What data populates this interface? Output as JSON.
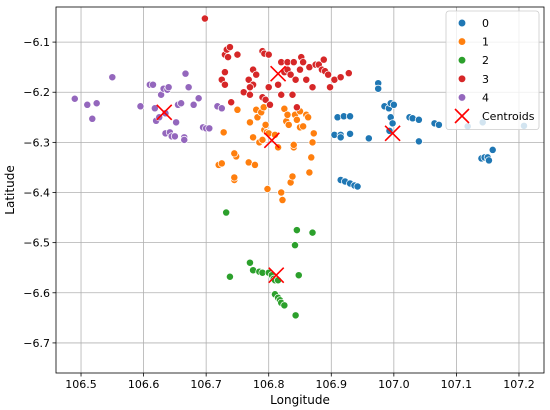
{
  "chart_data": {
    "type": "scatter",
    "title": "",
    "xlabel": "Longitude",
    "ylabel": "Latitude",
    "xlim": [
      106.46,
      107.24
    ],
    "ylim": [
      -6.76,
      -6.03
    ],
    "grid": true,
    "legend_placement": "top-right",
    "x_ticks": [
      106.5,
      106.6,
      106.7,
      106.8,
      106.9,
      107.0,
      107.1,
      107.2
    ],
    "y_ticks": [
      -6.1,
      -6.2,
      -6.3,
      -6.4,
      -6.5,
      -6.6,
      -6.7
    ],
    "x_tick_labels": [
      "106.5",
      "106.6",
      "106.7",
      "106.8",
      "106.9",
      "107.0",
      "107.1",
      "107.2"
    ],
    "y_tick_labels": [
      "−6.1",
      "−6.2",
      "−6.3",
      "−6.4",
      "−6.5",
      "−6.6",
      "−6.7"
    ],
    "series": [
      {
        "name": "0",
        "color": "#1f77b4",
        "points": [
          [
            106.905,
            -6.285
          ],
          [
            106.915,
            -6.285
          ],
          [
            106.91,
            -6.25
          ],
          [
            106.92,
            -6.248
          ],
          [
            106.93,
            -6.248
          ],
          [
            106.915,
            -6.29
          ],
          [
            106.93,
            -6.283
          ],
          [
            106.915,
            -6.375
          ],
          [
            106.922,
            -6.378
          ],
          [
            106.93,
            -6.382
          ],
          [
            106.937,
            -6.386
          ],
          [
            106.942,
            -6.388
          ],
          [
            106.975,
            -6.182
          ],
          [
            106.975,
            -6.193
          ],
          [
            106.985,
            -6.228
          ],
          [
            106.992,
            -6.232
          ],
          [
            106.995,
            -6.222
          ],
          [
            107.0,
            -6.225
          ],
          [
            106.995,
            -6.25
          ],
          [
            106.998,
            -6.262
          ],
          [
            106.993,
            -6.277
          ],
          [
            106.96,
            -6.292
          ],
          [
            107.025,
            -6.25
          ],
          [
            107.03,
            -6.252
          ],
          [
            107.04,
            -6.255
          ],
          [
            107.04,
            -6.298
          ],
          [
            107.065,
            -6.262
          ],
          [
            107.072,
            -6.265
          ],
          [
            107.118,
            -6.268
          ],
          [
            107.142,
            -6.26
          ],
          [
            107.14,
            -6.332
          ],
          [
            107.145,
            -6.33
          ],
          [
            107.15,
            -6.33
          ],
          [
            107.152,
            -6.336
          ],
          [
            107.158,
            -6.315
          ],
          [
            107.208,
            -6.267
          ]
        ]
      },
      {
        "name": "1",
        "color": "#ff7f0e",
        "points": [
          [
            106.72,
            -6.345
          ],
          [
            106.725,
            -6.342
          ],
          [
            106.728,
            -6.28
          ],
          [
            106.745,
            -6.375
          ],
          [
            106.745,
            -6.37
          ],
          [
            106.748,
            -6.328
          ],
          [
            106.745,
            -6.322
          ],
          [
            106.75,
            -6.235
          ],
          [
            106.768,
            -6.34
          ],
          [
            106.77,
            -6.26
          ],
          [
            106.775,
            -6.29
          ],
          [
            106.778,
            -6.345
          ],
          [
            106.78,
            -6.235
          ],
          [
            106.782,
            -6.25
          ],
          [
            106.788,
            -6.24
          ],
          [
            106.785,
            -6.3
          ],
          [
            106.79,
            -6.295
          ],
          [
            106.793,
            -6.275
          ],
          [
            106.795,
            -6.265
          ],
          [
            106.792,
            -6.23
          ],
          [
            106.797,
            -6.28
          ],
          [
            106.8,
            -6.282
          ],
          [
            106.798,
            -6.393
          ],
          [
            106.81,
            -6.285
          ],
          [
            106.815,
            -6.31
          ],
          [
            106.82,
            -6.4
          ],
          [
            106.822,
            -6.415
          ],
          [
            106.825,
            -6.233
          ],
          [
            106.828,
            -6.258
          ],
          [
            106.83,
            -6.245
          ],
          [
            106.832,
            -6.265
          ],
          [
            106.835,
            -6.38
          ],
          [
            106.838,
            -6.368
          ],
          [
            106.84,
            -6.31
          ],
          [
            106.84,
            -6.305
          ],
          [
            106.842,
            -6.245
          ],
          [
            106.845,
            -6.255
          ],
          [
            106.85,
            -6.238
          ],
          [
            106.85,
            -6.27
          ],
          [
            106.855,
            -6.268
          ],
          [
            106.86,
            -6.245
          ],
          [
            106.863,
            -6.25
          ],
          [
            106.865,
            -6.36
          ],
          [
            106.868,
            -6.33
          ],
          [
            106.87,
            -6.3
          ],
          [
            106.872,
            -6.282
          ]
        ]
      },
      {
        "name": "2",
        "color": "#2ca02c",
        "points": [
          [
            106.732,
            -6.44
          ],
          [
            106.738,
            -6.568
          ],
          [
            106.77,
            -6.54
          ],
          [
            106.775,
            -6.555
          ],
          [
            106.785,
            -6.558
          ],
          [
            106.79,
            -6.56
          ],
          [
            106.8,
            -6.56
          ],
          [
            106.805,
            -6.565
          ],
          [
            106.808,
            -6.572
          ],
          [
            106.81,
            -6.575
          ],
          [
            106.815,
            -6.575
          ],
          [
            106.81,
            -6.603
          ],
          [
            106.815,
            -6.61
          ],
          [
            106.818,
            -6.615
          ],
          [
            106.82,
            -6.62
          ],
          [
            106.825,
            -6.625
          ],
          [
            106.842,
            -6.505
          ],
          [
            106.845,
            -6.475
          ],
          [
            106.848,
            -6.565
          ],
          [
            106.87,
            -6.48
          ],
          [
            106.843,
            -6.645
          ]
        ]
      },
      {
        "name": "3",
        "color": "#d62728",
        "points": [
          [
            106.698,
            -6.053
          ],
          [
            106.725,
            -6.175
          ],
          [
            106.73,
            -6.125
          ],
          [
            106.733,
            -6.115
          ],
          [
            106.735,
            -6.13
          ],
          [
            106.73,
            -6.16
          ],
          [
            106.73,
            -6.185
          ],
          [
            106.738,
            -6.11
          ],
          [
            106.74,
            -6.22
          ],
          [
            106.75,
            -6.125
          ],
          [
            106.76,
            -6.2
          ],
          [
            106.768,
            -6.175
          ],
          [
            106.77,
            -6.205
          ],
          [
            106.775,
            -6.155
          ],
          [
            106.775,
            -6.185
          ],
          [
            106.78,
            -6.165
          ],
          [
            106.79,
            -6.118
          ],
          [
            106.793,
            -6.123
          ],
          [
            106.79,
            -6.21
          ],
          [
            106.795,
            -6.215
          ],
          [
            106.8,
            -6.19
          ],
          [
            106.8,
            -6.125
          ],
          [
            106.802,
            -6.225
          ],
          [
            106.815,
            -6.185
          ],
          [
            106.82,
            -6.14
          ],
          [
            106.825,
            -6.16
          ],
          [
            106.83,
            -6.155
          ],
          [
            106.83,
            -6.14
          ],
          [
            106.835,
            -6.165
          ],
          [
            106.84,
            -6.14
          ],
          [
            106.843,
            -6.175
          ],
          [
            106.845,
            -6.23
          ],
          [
            106.85,
            -6.155
          ],
          [
            106.852,
            -6.13
          ],
          [
            106.855,
            -6.14
          ],
          [
            106.86,
            -6.175
          ],
          [
            106.865,
            -6.15
          ],
          [
            106.875,
            -6.145
          ],
          [
            106.88,
            -6.145
          ],
          [
            106.885,
            -6.155
          ],
          [
            106.888,
            -6.135
          ],
          [
            106.89,
            -6.158
          ],
          [
            106.895,
            -6.165
          ],
          [
            106.898,
            -6.19
          ],
          [
            106.905,
            -6.175
          ],
          [
            106.915,
            -6.17
          ],
          [
            106.928,
            -6.162
          ],
          [
            106.82,
            -6.205
          ],
          [
            106.838,
            -6.205
          ],
          [
            106.87,
            -6.19
          ],
          [
            106.77,
            -6.19
          ]
        ]
      },
      {
        "name": "4",
        "color": "#9467bd",
        "points": [
          [
            106.49,
            -6.213
          ],
          [
            106.51,
            -6.225
          ],
          [
            106.518,
            -6.253
          ],
          [
            106.525,
            -6.222
          ],
          [
            106.55,
            -6.17
          ],
          [
            106.595,
            -6.228
          ],
          [
            106.61,
            -6.185
          ],
          [
            106.615,
            -6.185
          ],
          [
            106.618,
            -6.232
          ],
          [
            106.62,
            -6.257
          ],
          [
            106.625,
            -6.25
          ],
          [
            106.628,
            -6.205
          ],
          [
            106.632,
            -6.193
          ],
          [
            106.635,
            -6.282
          ],
          [
            106.638,
            -6.195
          ],
          [
            106.64,
            -6.19
          ],
          [
            106.642,
            -6.28
          ],
          [
            106.645,
            -6.288
          ],
          [
            106.65,
            -6.288
          ],
          [
            106.652,
            -6.26
          ],
          [
            106.655,
            -6.225
          ],
          [
            106.66,
            -6.222
          ],
          [
            106.665,
            -6.29
          ],
          [
            106.667,
            -6.163
          ],
          [
            106.672,
            -6.19
          ],
          [
            106.68,
            -6.225
          ],
          [
            106.688,
            -6.212
          ],
          [
            106.695,
            -6.27
          ],
          [
            106.7,
            -6.272
          ],
          [
            106.705,
            -6.272
          ],
          [
            106.718,
            -6.228
          ],
          [
            106.725,
            -6.232
          ],
          [
            106.635,
            -6.242
          ],
          [
            106.665,
            -6.295
          ]
        ]
      }
    ],
    "centroids": {
      "name": "Centroids",
      "color": "#ff0000",
      "points": [
        [
          106.998,
          -6.282
        ],
        [
          106.805,
          -6.296
        ],
        [
          106.812,
          -6.565
        ],
        [
          106.815,
          -6.163
        ],
        [
          106.633,
          -6.24
        ]
      ]
    }
  }
}
